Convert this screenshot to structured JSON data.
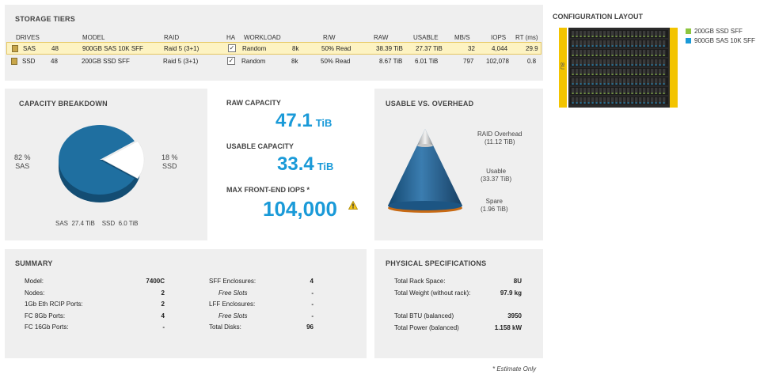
{
  "storage_tiers": {
    "title": "STORAGE TIERS",
    "columns": [
      "DRIVES",
      "MODEL",
      "RAID",
      "HA",
      "WORKLOAD",
      "R/W",
      "RAW",
      "USABLE",
      "MB/S",
      "IOPS",
      "RT (ms)"
    ],
    "rows": [
      {
        "type": "SAS",
        "count": "48",
        "model": "900GB SAS 10K SFF",
        "raid": "Raid 5 (3+1)",
        "ha": "✓",
        "workload": "Random",
        "block": "8k",
        "rw": "50% Read",
        "raw": "38.39 TiB",
        "usable": "27.37 TiB",
        "mbs": "32",
        "iops": "4,044",
        "rt": "29.9"
      },
      {
        "type": "SSD",
        "count": "48",
        "model": "200GB SSD SFF",
        "raid": "Raid 5 (3+1)",
        "ha": "✓",
        "workload": "Random",
        "block": "8k",
        "rw": "50% Read",
        "raw": "8.67 TiB",
        "usable": "6.01 TiB",
        "mbs": "797",
        "iops": "102,078",
        "rt": "0.8"
      }
    ]
  },
  "configuration_layout": {
    "title": "CONFIGURATION LAYOUT",
    "rack_label": "8U",
    "legend": [
      {
        "label": "200GB SSD SFF",
        "color": "#8dc63f"
      },
      {
        "label": "900GB SAS 10K SFF",
        "color": "#1a9ad8"
      }
    ]
  },
  "capacity_breakdown": {
    "title": "CAPACITY BREAKDOWN",
    "sas_pct": "82 %",
    "sas_label": "SAS",
    "ssd_pct": "18 %",
    "ssd_label": "SSD",
    "footer": "SAS  27.4 TiB    SSD  6.0 TiB",
    "chart_data": {
      "type": "pie",
      "categories": [
        "SAS",
        "SSD"
      ],
      "values": [
        82,
        18
      ],
      "colors": [
        "#1f6fa0",
        "#ffffff"
      ]
    }
  },
  "stats": {
    "raw_label": "RAW CAPACITY",
    "raw_value": "47.1",
    "raw_unit": "TiB",
    "usable_label": "USABLE CAPACITY",
    "usable_value": "33.4",
    "usable_unit": "TiB",
    "iops_label": "MAX FRONT-END IOPS *",
    "iops_value": "104,000",
    "warning_icon": "warning-icon"
  },
  "usable_vs_overhead": {
    "title": "USABLE VS. OVERHEAD",
    "raid_label": "RAID Overhead",
    "raid_value": "(11.12 TiB)",
    "usable_label": "Usable",
    "usable_value": "(33.37 TiB)",
    "spare_label": "Spare",
    "spare_value": "(1.96 TiB)"
  },
  "summary": {
    "title": "SUMMARY",
    "left": [
      {
        "label": "Model:",
        "value": "7400C"
      },
      {
        "label": "Nodes:",
        "value": "2"
      },
      {
        "label": "1Gb Eth RCIP Ports:",
        "value": "2"
      },
      {
        "label": "FC 8Gb Ports:",
        "value": "4"
      },
      {
        "label": "FC 16Gb Ports:",
        "value": "-"
      }
    ],
    "right": [
      {
        "label": "SFF Enclosures:",
        "value": "4"
      },
      {
        "label": "Free Slots",
        "value": "-"
      },
      {
        "label": "LFF Enclosures:",
        "value": "-"
      },
      {
        "label": "Free Slots",
        "value": "-"
      },
      {
        "label": "Total Disks:",
        "value": "96"
      }
    ]
  },
  "physical": {
    "title": "PHYSICAL SPECIFICATIONS",
    "rows": [
      {
        "label": "Total Rack Space:",
        "value": "8U"
      },
      {
        "label": "Total Weight (without rack):",
        "value": "97.9 kg"
      },
      {
        "label": "Total BTU (balanced)",
        "value": "3950"
      },
      {
        "label": "Total Power (balanced)",
        "value": "1.158 kW"
      }
    ]
  },
  "footnote": "* Estimate Only"
}
